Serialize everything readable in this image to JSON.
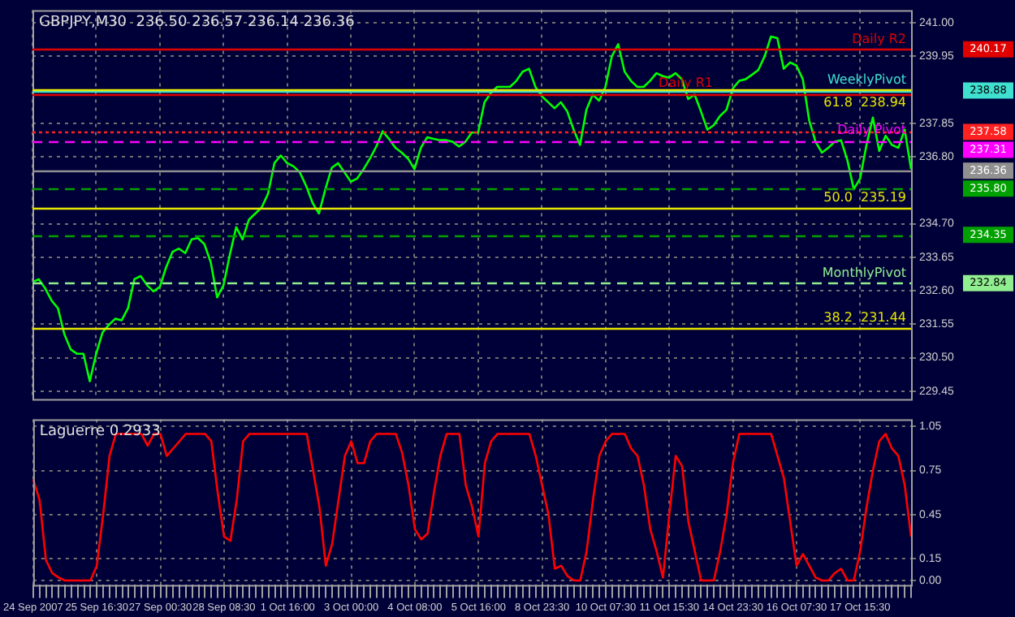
{
  "chart_data": [
    {
      "type": "line",
      "title": "GBPJPY,M30  236.50 236.57 236.14 236.36",
      "categories": [
        null,
        null,
        null,
        null,
        null,
        null,
        null,
        null,
        null,
        null,
        null,
        null,
        null,
        null,
        null,
        null,
        null,
        null,
        null,
        null,
        null,
        null,
        null,
        null,
        null,
        null,
        null,
        null,
        null,
        null,
        null,
        null,
        null,
        null,
        null,
        null,
        null,
        null,
        null,
        null,
        null,
        null,
        null,
        null,
        null,
        null,
        null,
        null,
        null,
        null,
        null,
        null,
        null,
        null,
        null,
        null,
        null,
        null,
        null,
        null,
        null,
        null,
        null,
        null,
        null,
        null,
        null,
        null,
        null,
        null,
        null,
        null,
        null,
        null,
        null,
        null,
        null,
        null,
        null,
        null,
        null,
        null,
        null,
        null,
        null,
        null,
        null,
        null,
        null,
        null,
        null,
        null,
        null,
        null,
        null,
        null,
        null,
        null,
        null,
        null,
        null,
        null,
        null,
        null,
        null,
        null,
        null,
        null,
        null,
        null,
        null,
        null,
        null,
        null,
        null,
        null,
        null,
        null,
        null,
        null,
        null,
        null,
        null,
        null,
        null,
        null,
        null,
        null,
        null,
        null,
        null,
        null,
        null,
        null,
        null,
        null,
        null,
        null,
        null
      ],
      "series": [
        {
          "color": "#00ff00",
          "values": [
            232.87,
            232.96,
            232.67,
            232.29,
            232.05,
            231.24,
            230.76,
            230.62,
            230.62,
            229.76,
            230.62,
            231.29,
            231.53,
            231.72,
            231.67,
            232.05,
            232.96,
            233.06,
            232.77,
            232.58,
            232.72,
            233.34,
            233.82,
            233.92,
            233.78,
            234.21,
            234.25,
            234.06,
            233.49,
            232.39,
            232.77,
            233.73,
            234.59,
            234.21,
            234.83,
            235.02,
            235.21,
            235.64,
            236.6,
            236.84,
            236.6,
            236.5,
            236.31,
            235.88,
            235.35,
            235.02,
            235.78,
            236.45,
            236.6,
            236.31,
            236.02,
            236.12,
            236.41,
            236.74,
            237.12,
            237.6,
            237.36,
            237.08,
            236.93,
            236.74,
            236.41,
            237.08,
            237.41,
            237.36,
            237.32,
            237.32,
            237.27,
            237.12,
            237.27,
            237.56,
            237.56,
            238.51,
            238.8,
            238.99,
            238.99,
            238.99,
            239.18,
            239.47,
            239.56,
            238.99,
            238.7,
            238.51,
            238.32,
            238.51,
            238.22,
            237.65,
            237.17,
            238.27,
            238.75,
            238.56,
            238.99,
            239.95,
            240.33,
            239.47,
            239.18,
            238.99,
            238.99,
            239.18,
            239.42,
            239.33,
            239.28,
            239.42,
            239.23,
            238.61,
            238.75,
            238.22,
            237.65,
            237.79,
            238.08,
            238.27,
            238.94,
            239.18,
            239.23,
            239.37,
            239.52,
            239.95,
            240.57,
            240.52,
            239.56,
            239.76,
            239.66,
            239.23,
            237.94,
            237.27,
            236.93,
            237.08,
            237.27,
            237.32,
            236.69,
            235.78,
            236.12,
            237.17,
            238.03,
            236.98,
            237.46,
            237.17,
            237.08,
            237.65,
            236.41
          ]
        }
      ],
      "ylim": [
        229.2,
        241.4
      ],
      "yticks": [
        {
          "value": 241,
          "label": "241.00"
        },
        239.95,
        237.85,
        {
          "value": 236.8,
          "label": "236.80"
        },
        {
          "value": 234.7,
          "label": "234.70"
        },
        233.65,
        {
          "value": 232.6,
          "label": "232.60"
        },
        231.55,
        {
          "value": 230.5,
          "label": "230.50"
        },
        229.45
      ],
      "grid": true,
      "legend": false,
      "tick_labels": "y",
      "ref_lines": [
        {
          "axis": "y",
          "value": 240.17,
          "label": "Daily R2",
          "color": "#e00000",
          "line_style": "solid"
        },
        {
          "axis": "y",
          "value": 238.88,
          "label": "WeeklyPivot",
          "color": "#40e0d0",
          "line_style": "solid"
        },
        {
          "axis": "y",
          "value": 237.58,
          "color": "#ff2020",
          "line_style": "dotted"
        },
        {
          "axis": "y",
          "value": 237.31,
          "label": "Daily Pivot",
          "color": "#ff00ff",
          "line_style": "dashed"
        },
        {
          "axis": "y",
          "value": 236.36,
          "color": "#909090",
          "line_style": "solid"
        },
        {
          "axis": "y",
          "value": 235.8,
          "color": "#00a000",
          "line_style": "dashed"
        },
        {
          "axis": "y",
          "value": 234.35,
          "color": "#00a000",
          "line_style": "dashed"
        },
        {
          "axis": "y",
          "value": 232.84,
          "label": "MonthlyPivot",
          "color": "#90ee90",
          "line_style": "dashed"
        },
        {
          "axis": "y",
          "value": 238.94,
          "label": "61.8  238.94",
          "color": "#e6e600",
          "line_style": "solid"
        },
        {
          "axis": "y",
          "value": 238.78,
          "label": "Daily R1",
          "color": "#e00000",
          "line_style": "solid"
        },
        {
          "axis": "y",
          "value": 235.19,
          "label": "50.0  235.19",
          "color": "#e6e600",
          "line_style": "solid"
        },
        {
          "axis": "y",
          "value": 231.44,
          "label": "38.2  231.44",
          "color": "#e6e600",
          "line_style": "solid"
        }
      ],
      "annotations": [
        "240.17",
        "238.88",
        "237.58",
        "237.31",
        "236.36",
        "235.80",
        "234.35",
        "232.84"
      ]
    },
    {
      "type": "line",
      "title": "Laguerre 0.2933",
      "categories": [
        "24 Sep 2007",
        null,
        null,
        null,
        null,
        null,
        null,
        null,
        null,
        null,
        "25 Sep 16:30",
        null,
        null,
        null,
        null,
        null,
        null,
        null,
        null,
        null,
        "27 Sep 00:30",
        null,
        null,
        null,
        null,
        null,
        null,
        null,
        null,
        null,
        "28 Sep 08:30",
        null,
        null,
        null,
        null,
        null,
        null,
        null,
        null,
        null,
        "1 Oct 16:00",
        null,
        null,
        null,
        null,
        null,
        null,
        null,
        null,
        null,
        "3 Oct 00:00",
        null,
        null,
        null,
        null,
        null,
        null,
        null,
        null,
        null,
        "4 Oct 08:00",
        null,
        null,
        null,
        null,
        null,
        null,
        null,
        null,
        null,
        "5 Oct 16:00",
        null,
        null,
        null,
        null,
        null,
        null,
        null,
        null,
        null,
        "8 Oct 23:30",
        null,
        null,
        null,
        null,
        null,
        null,
        null,
        null,
        null,
        "10 Oct 07:30",
        null,
        null,
        null,
        null,
        null,
        null,
        null,
        null,
        null,
        "11 Oct 15:30",
        null,
        null,
        null,
        null,
        null,
        null,
        null,
        null,
        null,
        "14 Oct 23:30",
        null,
        null,
        null,
        null,
        null,
        null,
        null,
        null,
        null,
        "16 Oct 07:30",
        null,
        null,
        null,
        null,
        null,
        null,
        null,
        null,
        null,
        "17 Oct 15:30",
        null,
        null,
        null,
        null,
        null,
        null,
        null,
        null
      ],
      "series": [
        {
          "color": "#ff0000",
          "values": [
            0.69,
            0.55,
            0.14,
            0.05,
            0.02,
            0,
            0,
            0,
            0,
            0,
            0.1,
            0.45,
            0.85,
            1,
            1,
            1,
            1,
            1,
            0.92,
            1,
            1,
            0.85,
            0.9,
            0.95,
            1,
            1,
            1,
            1,
            0.95,
            0.6,
            0.3,
            0.27,
            0.55,
            0.95,
            1,
            1,
            1,
            1,
            1,
            1,
            1,
            1,
            1,
            1,
            0.75,
            0.5,
            0.1,
            0.25,
            0.55,
            0.85,
            0.95,
            0.8,
            0.8,
            0.95,
            1,
            1,
            1,
            1,
            0.87,
            0.65,
            0.35,
            0.28,
            0.32,
            0.6,
            0.85,
            1,
            1,
            1,
            0.65,
            0.5,
            0.3,
            0.8,
            0.95,
            1,
            1,
            1,
            1,
            1,
            1,
            0.85,
            0.65,
            0.45,
            0.08,
            0.1,
            0.03,
            0,
            0,
            0.2,
            0.55,
            0.85,
            0.95,
            1,
            1,
            1,
            0.9,
            0.85,
            0.65,
            0.35,
            0.2,
            0.02,
            0.45,
            0.85,
            0.78,
            0.4,
            0.2,
            0,
            0,
            0,
            0.2,
            0.45,
            0.8,
            1,
            1,
            1,
            1,
            1,
            1,
            0.85,
            0.7,
            0.4,
            0.1,
            0.18,
            0.1,
            0.02,
            0,
            0,
            0.05,
            0.08,
            0,
            0,
            0.2,
            0.5,
            0.75,
            0.95,
            1,
            0.9,
            0.85,
            0.65,
            0.3
          ]
        }
      ],
      "ylim": [
        -0.03,
        1.1
      ],
      "yticks": [
        {
          "value": 1.05,
          "label": "1.05"
        },
        0.75,
        0.45,
        0.15,
        {
          "value": 0,
          "label": "0.00"
        }
      ],
      "grid": true,
      "legend": false
    }
  ]
}
